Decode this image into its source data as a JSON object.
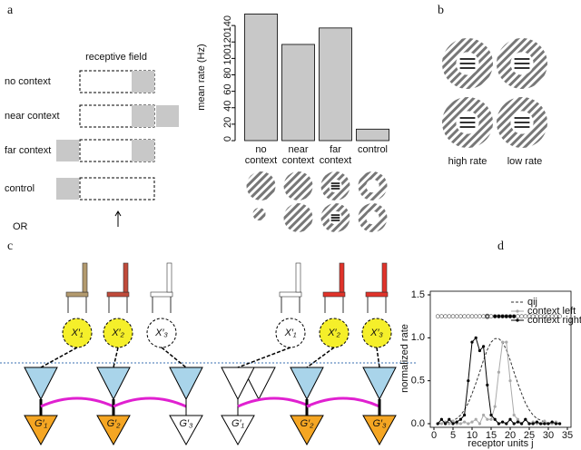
{
  "panel_labels": [
    "a",
    "b",
    "c",
    "d"
  ],
  "panel_a": {
    "header": "receptive field",
    "rows": [
      "no context",
      "near context",
      "far context",
      "control"
    ],
    "or": "OR"
  },
  "panel_b": {
    "labels": [
      "high rate",
      "low rate"
    ]
  },
  "panel_c": {
    "left_x_nodes": [
      "X′₁",
      "X′₂",
      "X′₃"
    ],
    "left_g_nodes": [
      "G′₁",
      "G′₂",
      "G′₃"
    ],
    "right_x_nodes": [
      "X′₁",
      "X′₂",
      "X′₃"
    ],
    "right_g_nodes": [
      "G′₁",
      "G′₂",
      "G′₃"
    ]
  },
  "chart_data": [
    {
      "type": "bar",
      "ylabel": "mean rate (Hz)",
      "categories": [
        "no context",
        "near context",
        "far context",
        "control"
      ],
      "values": [
        154,
        117,
        137,
        14
      ],
      "color": "#c8c8c8",
      "ylim": [
        0,
        160
      ],
      "yticks": [
        0,
        20,
        40,
        60,
        80,
        100,
        120,
        140
      ]
    },
    {
      "type": "line",
      "xlabel": "receptor units j",
      "ylabel": "normalized rate",
      "x": [
        1,
        2,
        3,
        4,
        5,
        6,
        7,
        8,
        9,
        10,
        11,
        12,
        13,
        14,
        15,
        16,
        17,
        18,
        19,
        20,
        21,
        22,
        23,
        24,
        25,
        26,
        27,
        28,
        29,
        30,
        31,
        32,
        33
      ],
      "series": [
        {
          "name": "qij",
          "color": "#333333",
          "line_style": "dashed",
          "marker": "none",
          "values": [
            0,
            0.01,
            0.01,
            0.02,
            0.04,
            0.06,
            0.1,
            0.16,
            0.24,
            0.35,
            0.47,
            0.6,
            0.74,
            0.86,
            0.95,
            0.99,
            0.99,
            0.95,
            0.86,
            0.74,
            0.6,
            0.47,
            0.35,
            0.24,
            0.16,
            0.1,
            0.06,
            0.04,
            0.02,
            0.01,
            0.01,
            0,
            0
          ]
        },
        {
          "name": "context left",
          "color": "#aaaaaa",
          "line_style": "solid",
          "marker": "circle",
          "values": [
            0,
            0,
            0.02,
            0,
            0.03,
            0,
            0,
            0.02,
            0,
            0.02,
            0.05,
            0,
            0.1,
            0.05,
            0.05,
            0.2,
            0.6,
            0.95,
            0.95,
            0.5,
            0.1,
            0.05,
            0,
            0.05,
            0,
            0.02,
            0,
            0,
            0.03,
            0,
            0,
            0.02,
            0
          ]
        },
        {
          "name": "context right",
          "color": "#000000",
          "line_style": "solid",
          "marker": "circle",
          "values": [
            0,
            0.05,
            0,
            0.05,
            0,
            0.02,
            0.05,
            0.1,
            0.5,
            0.95,
            1.0,
            0.85,
            0.9,
            0.45,
            0.1,
            0.05,
            0,
            0.02,
            0,
            0.05,
            0,
            0.02,
            0,
            0.05,
            0,
            0,
            0.02,
            0,
            0,
            0,
            0.02,
            0,
            0
          ]
        }
      ],
      "xlim": [
        0,
        35
      ],
      "xticks": [
        0,
        5,
        10,
        15,
        20,
        25,
        30,
        35
      ],
      "ylim": [
        0,
        1.5
      ],
      "yticks": [
        {
          "value": 0,
          "label": "0.0"
        },
        {
          "value": 0.5,
          "label": "0.5"
        },
        {
          "value": 1,
          "label": "1.0"
        },
        {
          "value": 1.5,
          "label": "1.5"
        }
      ],
      "legend": "upper right"
    }
  ]
}
